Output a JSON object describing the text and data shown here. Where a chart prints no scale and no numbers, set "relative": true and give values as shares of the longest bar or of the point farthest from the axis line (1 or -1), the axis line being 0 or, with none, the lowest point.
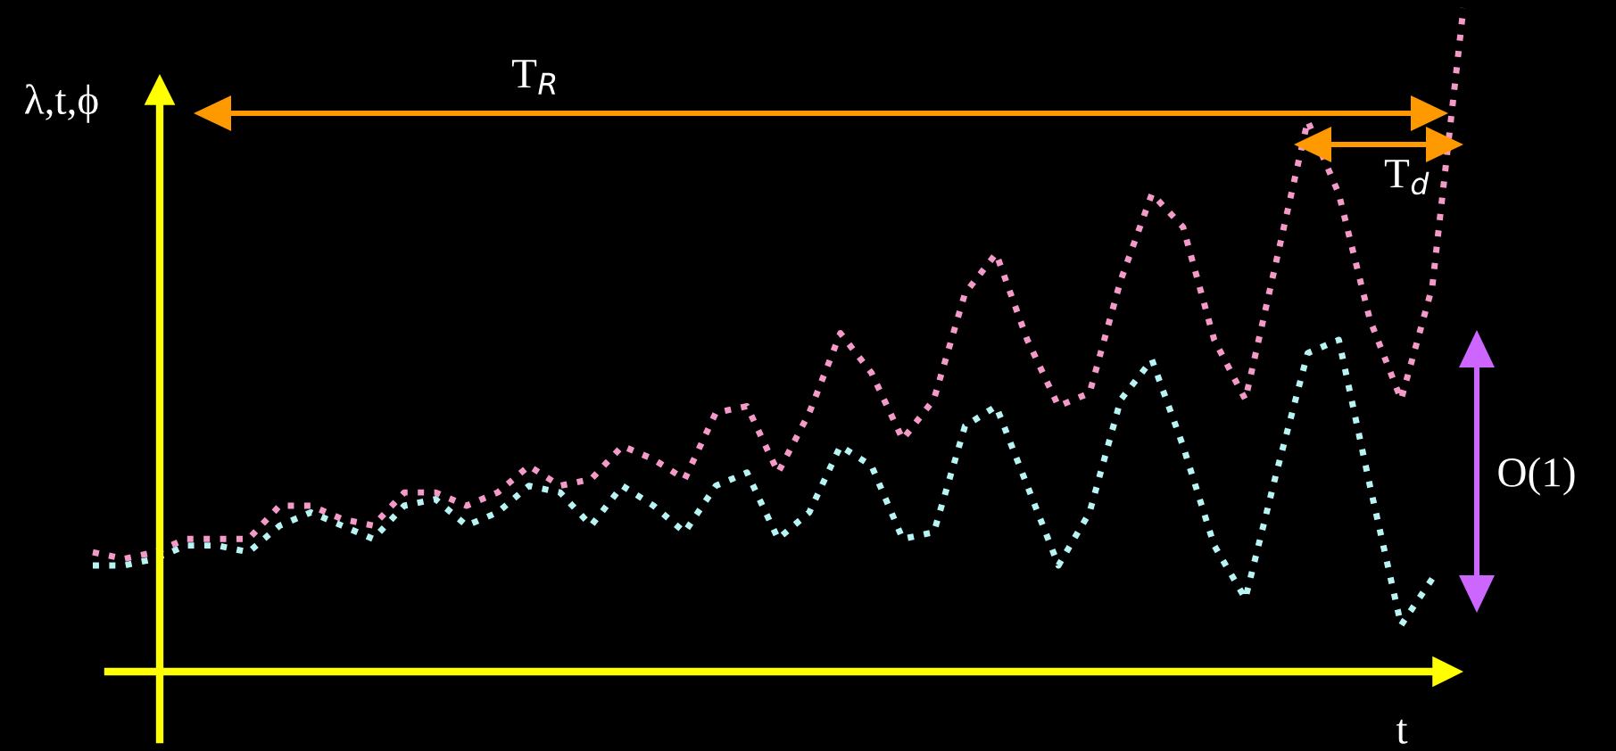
{
  "chart_data": {
    "type": "line",
    "relative": true,
    "xlabel": "t",
    "ylabel": "λ,t,ϕ",
    "legend": false,
    "grid": false,
    "marker": "none",
    "line_style": "dotted",
    "categories": [
      null,
      null,
      null,
      null,
      null,
      null,
      null,
      null,
      null,
      null,
      null,
      null,
      null,
      null,
      null,
      null,
      null,
      null,
      null,
      null,
      null,
      null,
      null,
      null,
      null,
      null,
      null,
      null,
      null,
      null,
      null,
      null,
      null,
      null,
      null,
      null,
      null,
      null,
      null,
      null,
      null,
      null,
      null,
      null,
      null
    ],
    "series": [
      {
        "color": "#f49ac8",
        "values": [
          0.18,
          0.17,
          0.18,
          0.2,
          0.2,
          0.2,
          0.25,
          0.25,
          0.23,
          0.22,
          0.27,
          0.27,
          0.25,
          0.27,
          0.31,
          0.28,
          0.29,
          0.34,
          0.32,
          0.29,
          0.39,
          0.4,
          0.3,
          0.39,
          0.51,
          0.45,
          0.35,
          0.41,
          0.57,
          0.63,
          0.5,
          0.4,
          0.42,
          0.59,
          0.72,
          0.67,
          0.5,
          0.41,
          0.62,
          0.83,
          0.72,
          0.53,
          0.41,
          0.58,
          1
        ]
      },
      {
        "color": "#b8f4f4",
        "values": [
          0.16,
          0.16,
          0.17,
          0.19,
          0.19,
          0.18,
          0.22,
          0.24,
          0.22,
          0.2,
          0.25,
          0.26,
          0.22,
          0.24,
          0.28,
          0.27,
          0.22,
          0.28,
          0.25,
          0.21,
          0.28,
          0.3,
          0.2,
          0.24,
          0.34,
          0.31,
          0.2,
          0.21,
          0.37,
          0.4,
          0.28,
          0.16,
          0.24,
          0.41,
          0.47,
          0.34,
          0.19,
          0.11,
          0.3,
          0.48,
          0.5,
          0.28,
          0.07,
          0.14,
          null
        ]
      }
    ],
    "annotations": [
      "T$_{R}$",
      "T$_{d}$",
      "O(1)"
    ]
  }
}
